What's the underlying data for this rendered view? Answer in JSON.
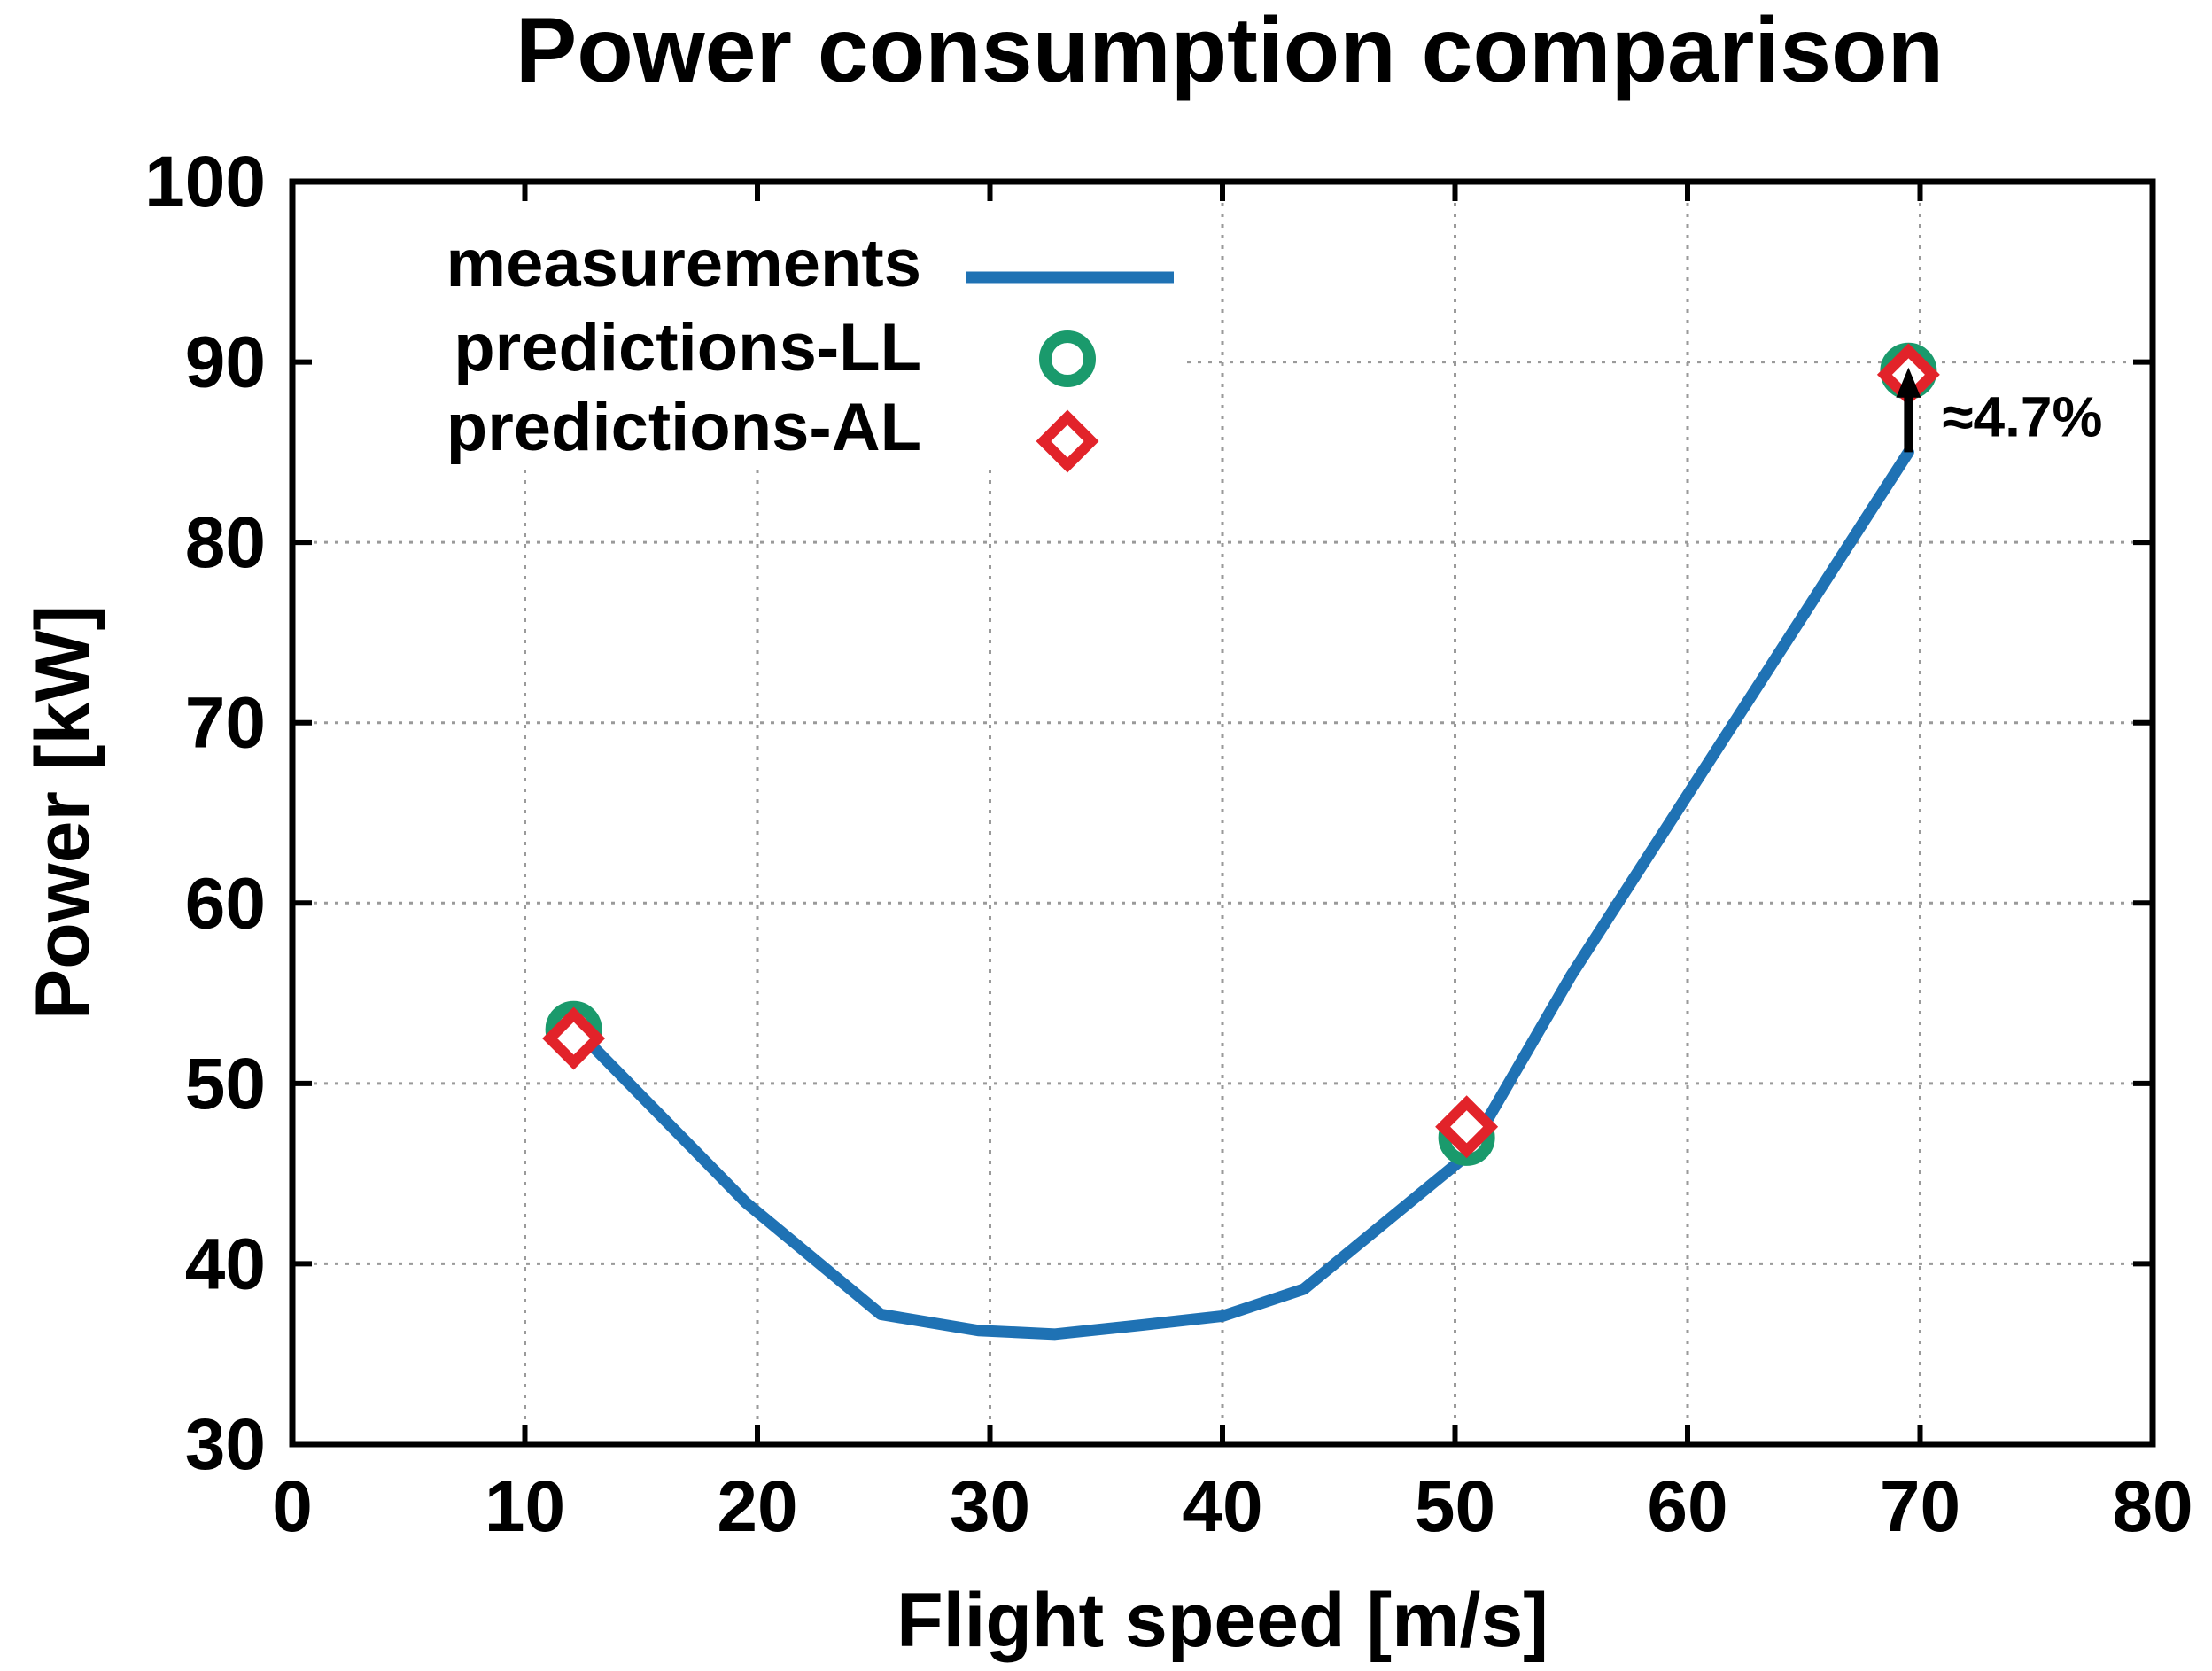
{
  "chart_data": {
    "type": "line",
    "title": "Power consumption comparison",
    "xlabel": "Flight speed [m/s]",
    "ylabel": "Power [kW]",
    "xlim": [
      0,
      80
    ],
    "ylim": [
      30,
      100
    ],
    "xticks": [
      0,
      10,
      20,
      30,
      40,
      50,
      60,
      70,
      80
    ],
    "yticks": [
      30,
      40,
      50,
      60,
      70,
      80,
      90,
      100
    ],
    "grid": true,
    "legend_position": "top-left",
    "series": [
      {
        "name": "measurements",
        "kind": "line",
        "color": "#1f72b4",
        "x": [
          12.2,
          19.5,
          25.3,
          29.5,
          32.8,
          36.5,
          40,
          43.5,
          50.5,
          55,
          60,
          65,
          69.5
        ],
        "y": [
          53,
          43.4,
          37.2,
          36.3,
          36.1,
          36.6,
          37.1,
          38.6,
          46,
          56,
          66,
          76,
          85
        ]
      },
      {
        "name": "predictions-LL",
        "kind": "circle",
        "color": "#1a9a6c",
        "x": [
          12.1,
          50.5,
          69.5
        ],
        "y": [
          53,
          47,
          89.5
        ]
      },
      {
        "name": "predictions-AL",
        "kind": "diamond",
        "color": "#e2232a",
        "x": [
          12.1,
          50.5,
          69.5
        ],
        "y": [
          52.5,
          47.6,
          89.3
        ]
      }
    ],
    "annotation": {
      "text": "≈4.7%",
      "x": 69.5,
      "y_from": 85,
      "y_to": 89.5
    }
  }
}
